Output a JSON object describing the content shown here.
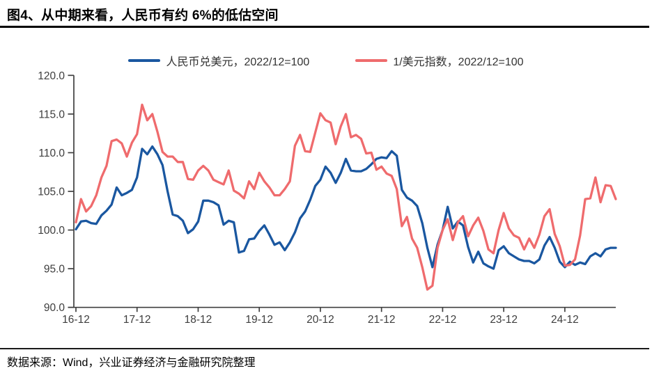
{
  "title": "图4、从中期来看，人民币有约 6%的低估空间",
  "footer": {
    "source_note": "数据来源：Wind，兴业证券经济与金融研究院整理"
  },
  "colors": {
    "cny": "#1A57A0",
    "usd": "#EF6B6D",
    "axis": "#404040",
    "tick_text": "#3d3d3d"
  },
  "chart_data": {
    "type": "line",
    "title": "图4、从中期来看，人民币有约 6%的低估空间",
    "xlabel": "",
    "ylabel": "",
    "ylim": [
      90,
      120
    ],
    "yticks": [
      90,
      95,
      100,
      105,
      110,
      115,
      120
    ],
    "ytick_labels": [
      "90.0",
      "95.0",
      "100.0",
      "105.0",
      "110.0",
      "115.0",
      "120.0"
    ],
    "xtick_positions": [
      0,
      12,
      24,
      36,
      48,
      60,
      72,
      84,
      96
    ],
    "xtick_labels": [
      "16-12",
      "17-12",
      "18-12",
      "19-12",
      "20-12",
      "21-12",
      "22-12",
      "23-12",
      "24-12"
    ],
    "grid": false,
    "legend_position": "top-center",
    "x": [
      "2016-12",
      "2017-01",
      "2017-02",
      "2017-03",
      "2017-04",
      "2017-05",
      "2017-06",
      "2017-07",
      "2017-08",
      "2017-09",
      "2017-10",
      "2017-11",
      "2017-12",
      "2018-01",
      "2018-02",
      "2018-03",
      "2018-04",
      "2018-05",
      "2018-06",
      "2018-07",
      "2018-08",
      "2018-09",
      "2018-10",
      "2018-11",
      "2018-12",
      "2019-01",
      "2019-02",
      "2019-03",
      "2019-04",
      "2019-05",
      "2019-06",
      "2019-07",
      "2019-08",
      "2019-09",
      "2019-10",
      "2019-11",
      "2019-12",
      "2020-01",
      "2020-02",
      "2020-03",
      "2020-04",
      "2020-05",
      "2020-06",
      "2020-07",
      "2020-08",
      "2020-09",
      "2020-10",
      "2020-11",
      "2020-12",
      "2021-01",
      "2021-02",
      "2021-03",
      "2021-04",
      "2021-05",
      "2021-06",
      "2021-07",
      "2021-08",
      "2021-09",
      "2021-10",
      "2021-11",
      "2021-12",
      "2022-01",
      "2022-02",
      "2022-03",
      "2022-04",
      "2022-05",
      "2022-06",
      "2022-07",
      "2022-08",
      "2022-09",
      "2022-10",
      "2022-11",
      "2022-12",
      "2023-01",
      "2023-02",
      "2023-03",
      "2023-04",
      "2023-05",
      "2023-06",
      "2023-07",
      "2023-08",
      "2023-09",
      "2023-10",
      "2023-11",
      "2023-12",
      "2024-01",
      "2024-02",
      "2024-03",
      "2024-04",
      "2024-05",
      "2024-06",
      "2024-07",
      "2024-08",
      "2024-09",
      "2024-10",
      "2024-11",
      "2024-12",
      "2025-01",
      "2025-02",
      "2025-03",
      "2025-04",
      "2025-05",
      "2025-06",
      "2025-07",
      "2025-08",
      "2025-09",
      "2025-10"
    ],
    "series": [
      {
        "name": "人民币兑美元，2022/12=100",
        "color_key": "cny",
        "values": [
          100.1,
          101.1,
          101.2,
          100.9,
          100.8,
          101.9,
          102.5,
          103.3,
          105.5,
          104.5,
          104.8,
          105.2,
          106.8,
          110.5,
          109.8,
          110.8,
          109.8,
          108.4,
          105.0,
          102.0,
          101.8,
          101.2,
          99.6,
          100.1,
          101.1,
          103.8,
          103.8,
          103.6,
          103.2,
          100.7,
          101.2,
          101.0,
          97.1,
          97.3,
          98.8,
          98.9,
          99.9,
          100.6,
          99.4,
          98.1,
          98.4,
          97.4,
          98.4,
          99.7,
          101.5,
          102.4,
          103.9,
          105.7,
          106.5,
          108.2,
          107.4,
          106.1,
          107.4,
          109.2,
          107.7,
          107.6,
          107.6,
          107.9,
          108.5,
          109.2,
          109.4,
          109.3,
          110.2,
          109.6,
          105.2,
          104.2,
          103.8,
          103.1,
          100.9,
          97.7,
          95.2,
          98.1,
          100.0,
          103.0,
          100.2,
          101.1,
          100.6,
          97.8,
          95.8,
          97.2,
          95.7,
          95.3,
          95.0,
          97.4,
          97.9,
          97.0,
          96.6,
          96.2,
          96.0,
          96.0,
          95.7,
          96.2,
          98.0,
          99.1,
          97.7,
          95.9,
          95.2,
          95.9,
          95.5,
          95.8,
          95.6,
          96.6,
          97.0,
          96.6,
          97.5,
          97.7,
          97.7
        ]
      },
      {
        "name": "1/美元指数，2022/12=100",
        "color_key": "usd",
        "values": [
          101.0,
          104.0,
          102.4,
          103.1,
          104.5,
          106.8,
          108.3,
          111.5,
          111.7,
          111.2,
          109.5,
          111.3,
          112.4,
          116.2,
          114.2,
          115.0,
          112.7,
          110.1,
          109.5,
          109.5,
          108.8,
          108.8,
          106.6,
          106.5,
          107.7,
          108.3,
          107.7,
          106.5,
          106.2,
          105.9,
          107.7,
          105.1,
          104.7,
          104.1,
          106.3,
          105.3,
          107.4,
          106.3,
          105.5,
          104.5,
          104.5,
          105.3,
          106.3,
          110.9,
          112.3,
          110.2,
          110.1,
          112.6,
          115.1,
          114.2,
          113.9,
          111.1,
          113.4,
          115.0,
          112.0,
          112.3,
          111.8,
          109.9,
          110.0,
          107.8,
          108.2,
          107.3,
          107.0,
          105.3,
          100.5,
          101.7,
          98.9,
          97.7,
          95.2,
          92.3,
          92.8,
          97.7,
          100.0,
          101.4,
          98.7,
          101.0,
          101.8,
          99.2,
          100.6,
          101.6,
          99.9,
          97.5,
          97.0,
          100.0,
          102.2,
          100.2,
          99.3,
          99.0,
          97.5,
          98.9,
          97.7,
          99.4,
          101.8,
          102.7,
          99.5,
          97.9,
          95.4,
          95.5,
          96.2,
          99.3,
          104.0,
          104.1,
          106.8,
          103.6,
          105.8,
          105.7,
          104.0
        ]
      }
    ]
  }
}
